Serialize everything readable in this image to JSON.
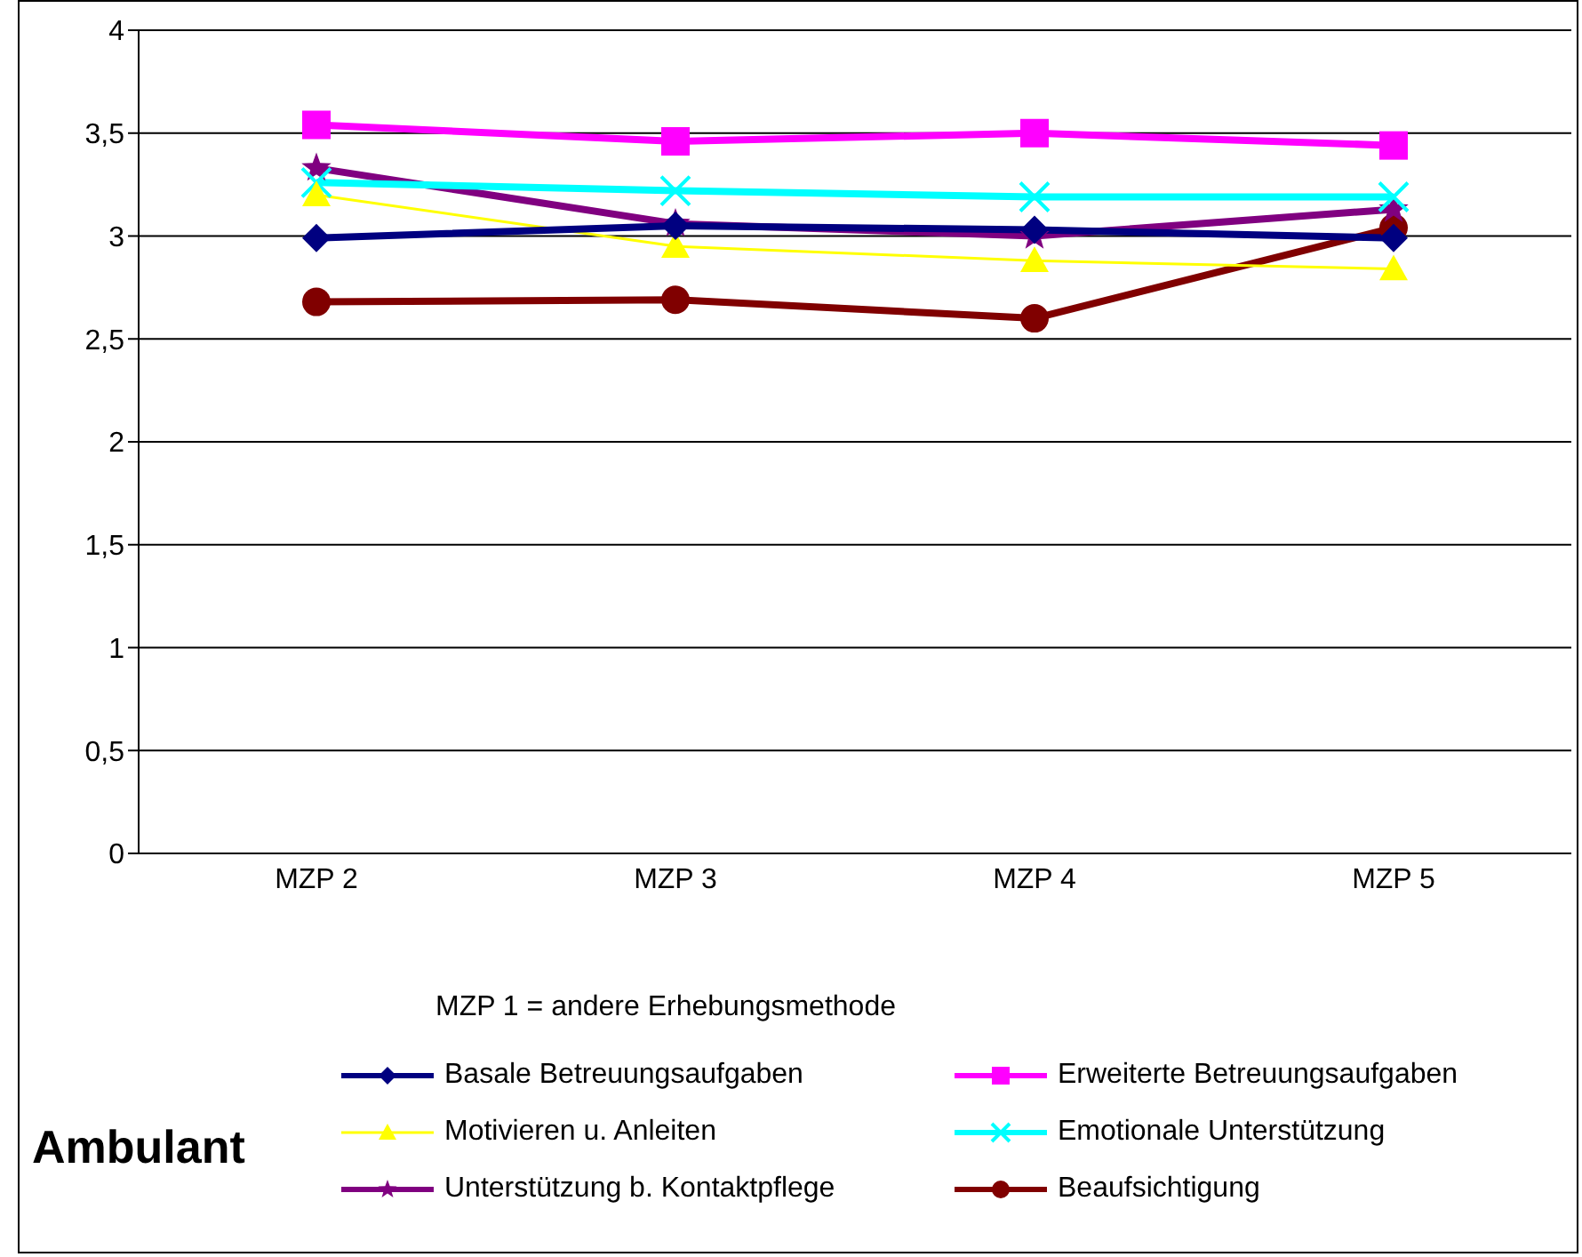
{
  "chart_data": {
    "type": "line",
    "categories": [
      "MZP 2",
      "MZP 3",
      "MZP 4",
      "MZP 5"
    ],
    "ylim": [
      0,
      4
    ],
    "yticks": [
      0,
      {
        "value": 0.5,
        "label": "0,5"
      },
      1,
      {
        "value": 1.5,
        "label": "1,5"
      },
      2,
      {
        "value": 2.5,
        "label": "2,5"
      },
      3,
      {
        "value": 3.5,
        "label": "3,5"
      },
      4
    ],
    "grid": "y",
    "legend": "bottom",
    "line_style": "solid",
    "annotations": [
      "MZP 1 = andere Erhebungsmethode",
      "Ambulant"
    ],
    "series": [
      {
        "name": "Basale Betreuungsaufgaben",
        "color": "#000080",
        "marker": "diamond",
        "values": [
          2.99,
          3.05,
          3.03,
          2.99
        ]
      },
      {
        "name": "Erweiterte Betreuungsaufgaben",
        "color": "#ff00ff",
        "marker": "square",
        "values": [
          3.54,
          3.46,
          3.5,
          3.44
        ]
      },
      {
        "name": "Motivieren u. Anleiten",
        "color": "#ffff00",
        "marker": "triangle",
        "values": [
          3.2,
          2.95,
          2.88,
          2.84
        ]
      },
      {
        "name": "Emotionale Unterstützung",
        "color": "#00ffff",
        "marker": "cross",
        "values": [
          3.26,
          3.22,
          3.19,
          3.19
        ]
      },
      {
        "name": "Unterstützung b. Kontaktpflege",
        "color": "#800080",
        "marker": "star",
        "values": [
          3.33,
          3.06,
          3.0,
          3.13
        ]
      },
      {
        "name": "Beaufsichtigung",
        "color": "#800000",
        "marker": "circle",
        "values": [
          2.68,
          2.69,
          2.6,
          3.04
        ]
      }
    ]
  }
}
